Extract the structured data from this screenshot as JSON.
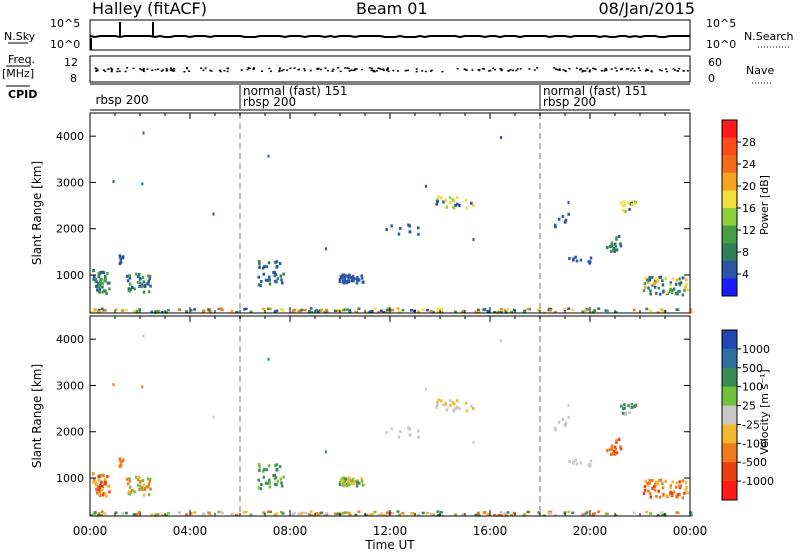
{
  "header": {
    "station": "Halley (fitACF)",
    "beam": "Beam 01",
    "date": "08/Jan/2015"
  },
  "strip": {
    "nsky_label": "N.Sky",
    "nsearch_label": "N.Search",
    "freq_label": "Freq.",
    "mhz_label": "[MHz]",
    "nave_label": "Nave",
    "cpid_label": "CPID",
    "nsky_ticks": [
      "10^5",
      "10^0"
    ],
    "nsearch_ticks": [
      "10^5",
      "10^0"
    ],
    "freq_ticks": [
      "12",
      "8"
    ],
    "nave_ticks": [
      "60",
      "0"
    ],
    "cpid_segments": [
      {
        "hour": 0.1,
        "text": "rbsp 200",
        "label2": ""
      },
      {
        "hour": 6.0,
        "text": "normal (fast) 151",
        "label2": "rbsp 200"
      },
      {
        "hour": 18.0,
        "text": "normal (fast) 151",
        "label2": "rbsp 200"
      }
    ]
  },
  "power_scale": {
    "title": "Power [dB]",
    "ticks": [
      "28",
      "24",
      "20",
      "16",
      "12",
      "8",
      "4"
    ],
    "colors": [
      "#ff1a1a",
      "#ff4a1a",
      "#f26a1a",
      "#f7a520",
      "#f2e03a",
      "#8ccf3a",
      "#45a045",
      "#2f7f5a",
      "#2a56a8",
      "#1a1aff"
    ]
  },
  "velocity_scale": {
    "title": "Velocity  [m s⁻¹]",
    "ticks": [
      "1000",
      "500",
      "100",
      "25",
      "-25",
      "-100",
      "-500",
      "-1000"
    ],
    "colors": [
      "#2048b0",
      "#2f6fa0",
      "#3a8a55",
      "#6fc23a",
      "#c8c8c8",
      "#f2b830",
      "#ef7a20",
      "#e84010",
      "#ff1a1a"
    ]
  },
  "chart_data": [
    {
      "type": "heatmap",
      "panel": "power",
      "xlabel": "",
      "ylabel": "Slant Range [km]",
      "xlim": [
        0,
        24
      ],
      "ylim": [
        180,
        4500
      ],
      "yticks": [
        1000,
        2000,
        3000,
        4000
      ],
      "legend": "right",
      "clusters": [
        {
          "x": 0.4,
          "y": 900,
          "w": 0.7,
          "h": 550,
          "n": 45,
          "c": [
            "#2a56a8",
            "#2f7f5a",
            "#45a045"
          ]
        },
        {
          "x": 1.9,
          "y": 850,
          "w": 1.0,
          "h": 400,
          "n": 35,
          "c": [
            "#2a56a8",
            "#2f7f5a",
            "#45a045"
          ]
        },
        {
          "x": 1.2,
          "y": 1350,
          "w": 0.3,
          "h": 200,
          "n": 8,
          "c": [
            "#2a56a8"
          ]
        },
        {
          "x": 7.2,
          "y": 1050,
          "w": 1.0,
          "h": 550,
          "n": 35,
          "c": [
            "#2a56a8",
            "#2f7f5a"
          ]
        },
        {
          "x": 10.4,
          "y": 950,
          "w": 1.0,
          "h": 180,
          "n": 40,
          "c": [
            "#2a56a8"
          ]
        },
        {
          "x": 14.6,
          "y": 2600,
          "w": 1.6,
          "h": 250,
          "n": 25,
          "c": [
            "#2a56a8",
            "#8ccf3a",
            "#f2e03a"
          ]
        },
        {
          "x": 12.4,
          "y": 2000,
          "w": 1.6,
          "h": 250,
          "n": 10,
          "c": [
            "#2a56a8"
          ]
        },
        {
          "x": 19.6,
          "y": 1350,
          "w": 1.0,
          "h": 150,
          "n": 10,
          "c": [
            "#2a56a8"
          ]
        },
        {
          "x": 20.9,
          "y": 1700,
          "w": 0.6,
          "h": 350,
          "n": 20,
          "c": [
            "#2a56a8",
            "#2f7f5a",
            "#45a045"
          ]
        },
        {
          "x": 21.5,
          "y": 2500,
          "w": 0.6,
          "h": 250,
          "n": 18,
          "c": [
            "#2a56a8",
            "#8ccf3a",
            "#f2e03a"
          ]
        },
        {
          "x": 23.0,
          "y": 800,
          "w": 1.8,
          "h": 400,
          "n": 60,
          "c": [
            "#2a56a8",
            "#2f7f5a",
            "#45a045",
            "#f7a520",
            "#f2e03a"
          ]
        },
        {
          "x": 18.8,
          "y": 2200,
          "w": 0.6,
          "h": 300,
          "n": 8,
          "c": [
            "#2a56a8"
          ]
        }
      ],
      "nearband": {
        "y": 260,
        "h": 90,
        "n": 170,
        "c": [
          "#2a56a8",
          "#2f7f5a",
          "#45a045",
          "#f2e03a",
          "#f7a520",
          "#ef7a20"
        ]
      },
      "scatter_points": [
        [
          2.1,
          4100,
          "#2a56a8"
        ],
        [
          2.05,
          3000,
          "#2a56a8"
        ],
        [
          0.9,
          3050,
          "#2a56a8"
        ],
        [
          4.9,
          2350,
          "#2a56a8"
        ],
        [
          7.1,
          3600,
          "#2a56a8"
        ],
        [
          13.4,
          2950,
          "#2a56a8"
        ],
        [
          16.4,
          4000,
          "#2a56a8"
        ],
        [
          15.3,
          1800,
          "#2a56a8"
        ],
        [
          9.4,
          1600,
          "#2a56a8"
        ],
        [
          19.1,
          2600,
          "#2a56a8"
        ]
      ]
    },
    {
      "type": "heatmap",
      "panel": "velocity",
      "xlabel": "Time UT",
      "ylabel": "Slant Range [km]",
      "xlim": [
        0,
        24
      ],
      "ylim": [
        180,
        4500
      ],
      "xticks": [
        "00:00",
        "04:00",
        "08:00",
        "12:00",
        "16:00",
        "20:00",
        "00:00"
      ],
      "yticks": [
        1000,
        2000,
        3000,
        4000
      ],
      "legend": "right",
      "clusters": [
        {
          "x": 0.4,
          "y": 900,
          "w": 0.7,
          "h": 550,
          "n": 45,
          "c": [
            "#ef7a20",
            "#f2b830",
            "#e84010"
          ]
        },
        {
          "x": 1.9,
          "y": 850,
          "w": 1.0,
          "h": 400,
          "n": 35,
          "c": [
            "#ef7a20",
            "#f2b830",
            "#6fc23a"
          ]
        },
        {
          "x": 1.2,
          "y": 1350,
          "w": 0.3,
          "h": 200,
          "n": 8,
          "c": [
            "#ef7a20"
          ]
        },
        {
          "x": 7.2,
          "y": 1050,
          "w": 1.0,
          "h": 550,
          "n": 35,
          "c": [
            "#3a8a55",
            "#6fc23a"
          ]
        },
        {
          "x": 10.4,
          "y": 950,
          "w": 1.0,
          "h": 180,
          "n": 40,
          "c": [
            "#6fc23a",
            "#f2b830",
            "#3a8a55"
          ]
        },
        {
          "x": 14.6,
          "y": 2600,
          "w": 1.6,
          "h": 250,
          "n": 25,
          "c": [
            "#c8c8c8",
            "#f2b830"
          ]
        },
        {
          "x": 12.4,
          "y": 2000,
          "w": 1.6,
          "h": 250,
          "n": 10,
          "c": [
            "#c8c8c8"
          ]
        },
        {
          "x": 19.6,
          "y": 1350,
          "w": 1.0,
          "h": 150,
          "n": 10,
          "c": [
            "#c8c8c8"
          ]
        },
        {
          "x": 20.9,
          "y": 1700,
          "w": 0.6,
          "h": 350,
          "n": 20,
          "c": [
            "#e84010",
            "#ef7a20"
          ]
        },
        {
          "x": 21.5,
          "y": 2500,
          "w": 0.6,
          "h": 250,
          "n": 18,
          "c": [
            "#c8c8c8",
            "#3a8a55"
          ]
        },
        {
          "x": 23.0,
          "y": 800,
          "w": 1.8,
          "h": 400,
          "n": 60,
          "c": [
            "#ef7a20",
            "#e84010",
            "#f2b830"
          ]
        },
        {
          "x": 18.8,
          "y": 2200,
          "w": 0.6,
          "h": 300,
          "n": 8,
          "c": [
            "#c8c8c8"
          ]
        }
      ],
      "nearband": {
        "y": 260,
        "h": 90,
        "n": 170,
        "c": [
          "#f2b830",
          "#ef7a20",
          "#6fc23a",
          "#3a8a55",
          "#c8c8c8"
        ]
      },
      "scatter_points": [
        [
          2.1,
          4100,
          "#c8c8c8"
        ],
        [
          2.05,
          3000,
          "#ef7a20"
        ],
        [
          0.9,
          3050,
          "#ef7a20"
        ],
        [
          4.9,
          2350,
          "#c8c8c8"
        ],
        [
          7.1,
          3600,
          "#3a8a55"
        ],
        [
          13.4,
          2950,
          "#c8c8c8"
        ],
        [
          16.4,
          4000,
          "#c8c8c8"
        ],
        [
          15.3,
          1800,
          "#c8c8c8"
        ],
        [
          9.4,
          1600,
          "#3a8a55"
        ],
        [
          19.1,
          2600,
          "#c8c8c8"
        ]
      ]
    }
  ]
}
